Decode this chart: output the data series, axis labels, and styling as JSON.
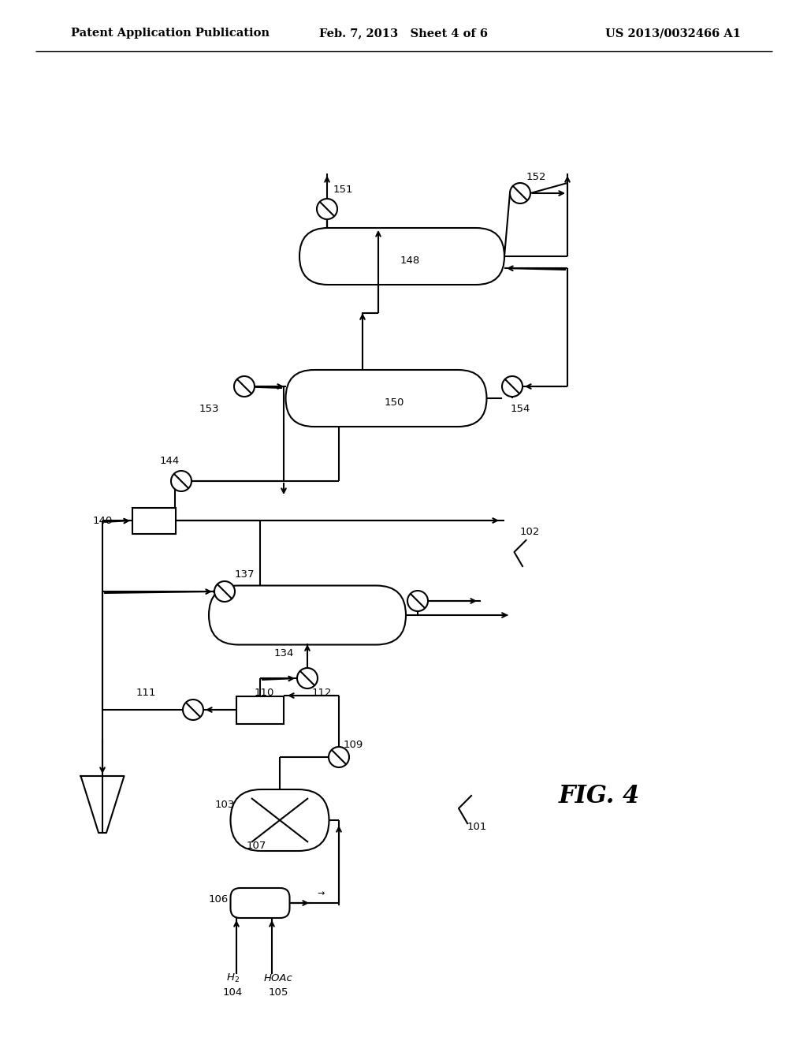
{
  "bg_color": "#ffffff",
  "line_color": "#000000",
  "header_left": "Patent Application Publication",
  "header_center": "Feb. 7, 2013   Sheet 4 of 6",
  "header_right": "US 2013/0032466 A1",
  "fig_label": "FIG. 4",
  "header_fontsize": 10.5,
  "label_fontsize": 9.5
}
